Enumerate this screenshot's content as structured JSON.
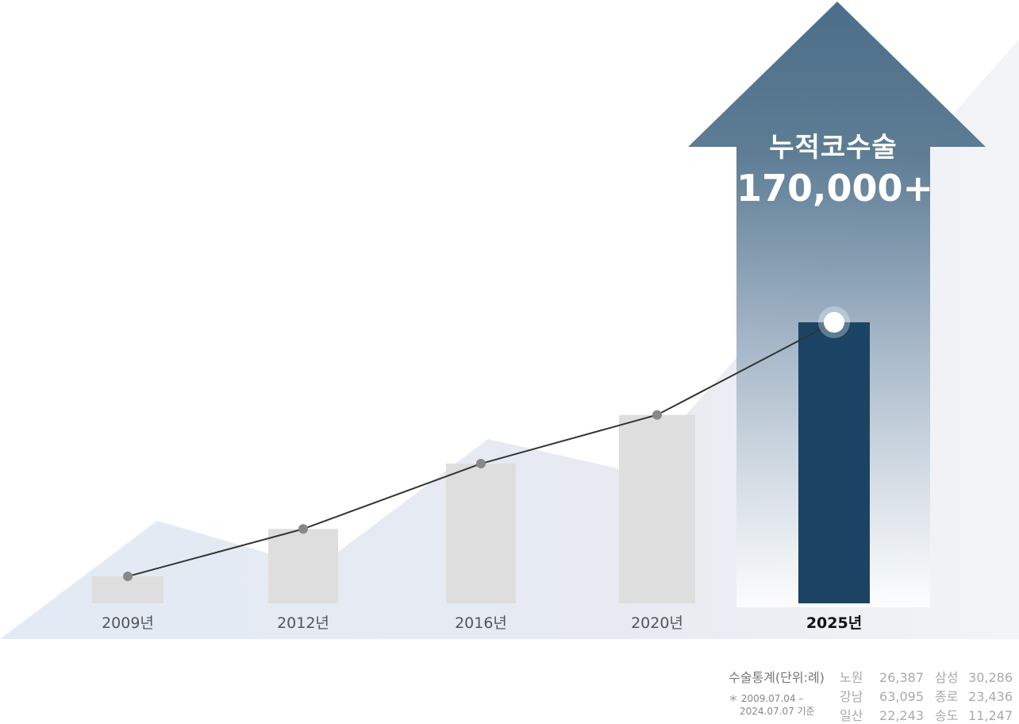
{
  "headline": {
    "title": "누적코수술",
    "value": "170,000+"
  },
  "colors": {
    "accent_bar": "#1b4464",
    "bar": "#dedede",
    "arrow_top": "#436683",
    "line": "#333333",
    "point": "#888888"
  },
  "chart_data": {
    "type": "bar",
    "categories": [
      "2009년",
      "2012년",
      "2016년",
      "2020년",
      "2025년"
    ],
    "values": [
      16300,
      45000,
      84500,
      114000,
      170000
    ],
    "highlight_category": "2025년",
    "overlay_line": true,
    "title": "",
    "xlabel": "",
    "ylabel": "",
    "grid": false
  },
  "stats": {
    "label": "수술통계(단위:례)",
    "note_line1": "＊ 2009.07.04 –",
    "note_line2": "2024.07.07 기준",
    "rows": [
      [
        {
          "name": "노원",
          "value": "26,387"
        },
        {
          "name": "삼성",
          "value": "30,286"
        }
      ],
      [
        {
          "name": "강남",
          "value": "63,095"
        },
        {
          "name": "종로",
          "value": "23,436"
        }
      ],
      [
        {
          "name": "일산",
          "value": "22,243"
        },
        {
          "name": "송도",
          "value": "11,247"
        }
      ]
    ]
  }
}
